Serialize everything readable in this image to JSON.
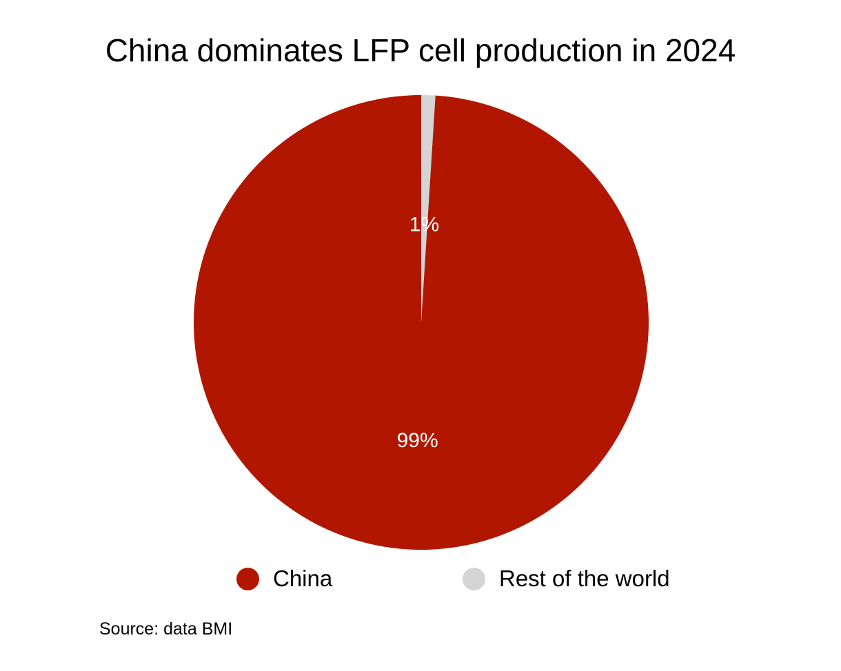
{
  "chart_data": {
    "type": "pie",
    "title": "China dominates LFP cell production in 2024",
    "slices": [
      {
        "label": "China",
        "value": 99,
        "data_label": "99%",
        "color": "#B11700"
      },
      {
        "label": "Rest of the world",
        "value": 1,
        "data_label": "1%",
        "color": "#D4D4D4"
      }
    ],
    "start": "top, clockwise",
    "legend": {
      "position": "bottom",
      "entries": [
        "China",
        "Rest of the world"
      ]
    },
    "source": "Source: data BMI"
  }
}
